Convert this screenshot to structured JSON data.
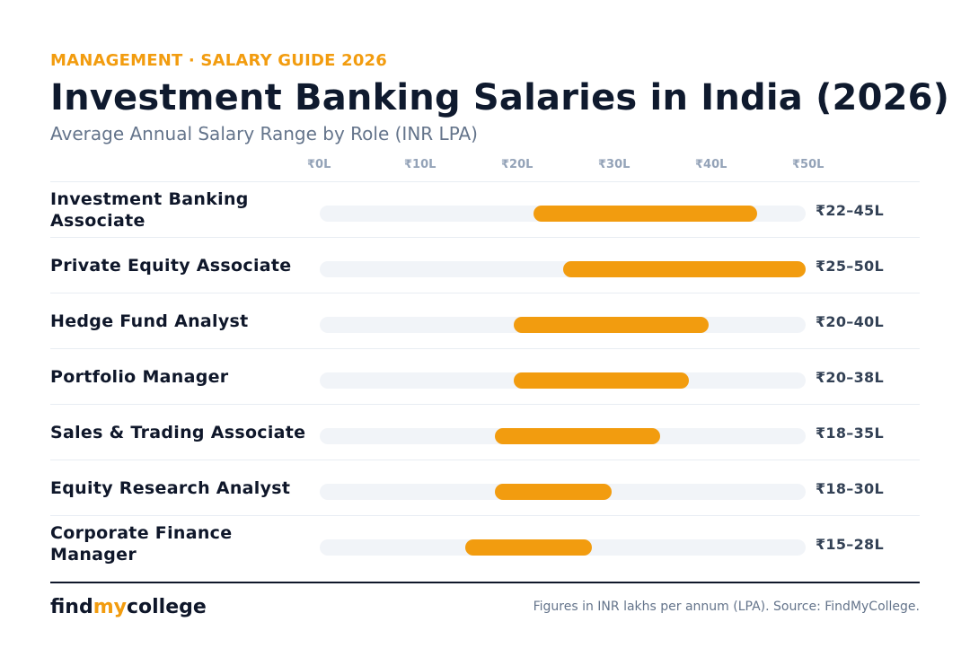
{
  "header": {
    "eyebrow": "MANAGEMENT · SALARY GUIDE 2026",
    "title": "Investment Banking Salaries in India (2026)",
    "subtitle": "Average Annual Salary Range by Role (INR LPA)"
  },
  "colors": {
    "accent": "#f29c0f",
    "track": "#f1f4f8",
    "text": "#0f172a",
    "muted": "#64748b"
  },
  "chart_data": {
    "type": "bar",
    "orientation": "horizontal-range",
    "xlim": [
      0,
      50
    ],
    "ticks": [
      "₹0L",
      "₹10L",
      "₹20L",
      "₹30L",
      "₹40L",
      "₹50L"
    ],
    "tick_values": [
      0,
      10,
      20,
      30,
      40,
      50
    ],
    "rows": [
      {
        "role": "Investment Banking Associate",
        "min": 22,
        "max": 45,
        "label": "₹22–45L"
      },
      {
        "role": "Private Equity Associate",
        "min": 25,
        "max": 50,
        "label": "₹25–50L"
      },
      {
        "role": "Hedge Fund Analyst",
        "min": 20,
        "max": 40,
        "label": "₹20–40L"
      },
      {
        "role": "Portfolio Manager",
        "min": 20,
        "max": 38,
        "label": "₹20–38L"
      },
      {
        "role": "Sales & Trading Associate",
        "min": 18,
        "max": 35,
        "label": "₹18–35L"
      },
      {
        "role": "Equity Research Analyst",
        "min": 18,
        "max": 30,
        "label": "₹18–30L"
      },
      {
        "role": "Corporate Finance Manager",
        "min": 15,
        "max": 28,
        "label": "₹15–28L"
      }
    ]
  },
  "footer": {
    "logo_part1": "find",
    "logo_part2": "my",
    "logo_part3": "college",
    "source": "Figures in INR lakhs per annum (LPA). Source: FindMyCollege."
  }
}
